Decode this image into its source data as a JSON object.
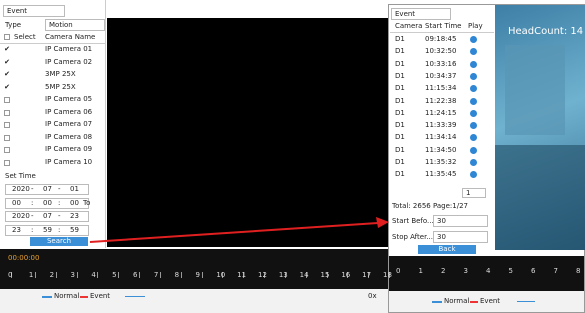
{
  "left_panel": {
    "mode": "Event",
    "type_label": "Type",
    "type_value": "Motion",
    "header": {
      "select": "Select",
      "camera_name": "Camera Name"
    },
    "cameras": [
      {
        "name": "IP Camera 01",
        "checked": true
      },
      {
        "name": "IP Camera 02",
        "checked": true
      },
      {
        "name": "3MP 25X",
        "checked": true
      },
      {
        "name": "5MP 25X",
        "checked": true
      },
      {
        "name": "IP Camera 05",
        "checked": false
      },
      {
        "name": "IP Camera 06",
        "checked": false
      },
      {
        "name": "IP Camera 07",
        "checked": false
      },
      {
        "name": "IP Camera 08",
        "checked": false
      },
      {
        "name": "IP Camera 09",
        "checked": false
      },
      {
        "name": "IP Camera 10",
        "checked": false
      }
    ],
    "set_time": "Set Time",
    "time_rows": [
      [
        "2020",
        "-",
        "07",
        "-",
        "01"
      ],
      [
        "00",
        ":",
        "00",
        ":",
        "00",
        "To"
      ],
      [
        "2020",
        "-",
        "07",
        "-",
        "23"
      ],
      [
        "23",
        ":",
        "59",
        ":",
        "59"
      ]
    ],
    "search": "Search"
  },
  "timeline": {
    "time": "00:00:00",
    "labels": [
      "0",
      "1",
      "2",
      "3",
      "4",
      "5",
      "6",
      "7",
      "8",
      "9",
      "10",
      "11",
      "12",
      "13",
      "14",
      "15",
      "16",
      "17",
      "18"
    ],
    "legend": [
      "Normal",
      "Event"
    ],
    "speed": "0x"
  },
  "right_panel": {
    "mode": "Event",
    "header": [
      "Camera",
      "Start Time",
      "Play"
    ],
    "rows": [
      [
        "D1",
        "09:18:45"
      ],
      [
        "D1",
        "10:32:50"
      ],
      [
        "D1",
        "10:33:16"
      ],
      [
        "D1",
        "10:34:37"
      ],
      [
        "D1",
        "11:15:34"
      ],
      [
        "D1",
        "11:22:38"
      ],
      [
        "D1",
        "11:24:15"
      ],
      [
        "D1",
        "11:33:39"
      ],
      [
        "D1",
        "11:34:14"
      ],
      [
        "D1",
        "11:34:50"
      ],
      [
        "D1",
        "11:35:32"
      ],
      [
        "D1",
        "11:35:45"
      ]
    ],
    "page_input": "1",
    "total": "Total: 2656  Page:1/27",
    "start_before": {
      "label": "Start Befo...",
      "value": "30"
    },
    "stop_after": {
      "label": "Stop After...",
      "value": "30"
    },
    "back": "Back",
    "overlay": "HeadCount: 14",
    "timeline_labels": [
      "0",
      "1",
      "2",
      "3",
      "4",
      "5",
      "6",
      "7",
      "8"
    ],
    "legend": [
      "Normal",
      "Event"
    ]
  }
}
